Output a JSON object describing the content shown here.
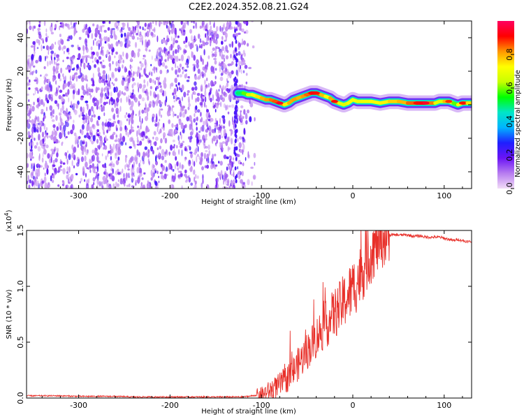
{
  "figure": {
    "title": "C2E2.2024.352.08.21.G24"
  },
  "chart_data": [
    {
      "type": "heatmap",
      "title": "C2E2.2024.352.08.21.G24",
      "xlabel": "Height of straight line (km)",
      "ylabel": "Frequency (Hz)",
      "xlim": [
        -357,
        130
      ],
      "ylim": [
        -50,
        50
      ],
      "xticks": [
        -300,
        -200,
        -100,
        0,
        100
      ],
      "xtick_labels": [
        "-300",
        "-200",
        "-100",
        "0",
        "100"
      ],
      "yticks": [
        -40,
        -20,
        0,
        20,
        40
      ],
      "ytick_labels": [
        "-40",
        "-20",
        "0",
        "20",
        "40"
      ],
      "colorbar": {
        "label": "Normalized spectral amplitude",
        "range": [
          0,
          1
        ],
        "ticks": [
          0.0,
          0.2,
          0.4,
          0.6,
          0.8
        ],
        "tick_labels": [
          "0.0",
          "0.2",
          "0.4",
          "0.6",
          "0.8"
        ],
        "colors": [
          "#f2dcf7",
          "#b77cf0",
          "#6b14f5",
          "#1f1fff",
          "#00b4ff",
          "#00e6c8",
          "#00ff00",
          "#c8ff00",
          "#ffff00",
          "#ff9600",
          "#ff0000",
          "#ff0060"
        ]
      },
      "noise_region_x": [
        -357,
        -118
      ],
      "ridge": {
        "x": [
          -126,
          -120,
          -115,
          -110,
          -105,
          -100,
          -95,
          -90,
          -85,
          -80,
          -75,
          -70,
          -65,
          -60,
          -55,
          -50,
          -45,
          -40,
          -35,
          -30,
          -25,
          -20,
          -15,
          -10,
          -5,
          0,
          5,
          10,
          20,
          30,
          40,
          50,
          60,
          70,
          80,
          90,
          95,
          100,
          105,
          110,
          115,
          120,
          125,
          130
        ],
        "y": [
          7,
          7,
          6,
          6,
          5,
          4,
          3,
          3,
          2,
          1,
          0,
          1,
          3,
          4,
          5,
          6,
          7,
          7,
          6,
          5,
          4,
          2,
          1,
          0,
          1,
          3,
          2,
          2,
          2,
          1,
          2,
          2,
          1,
          1,
          1,
          1,
          2,
          2,
          2,
          1,
          0,
          1,
          1,
          1
        ],
        "amplitude": [
          0.45,
          0.55,
          0.62,
          0.7,
          0.72,
          0.78,
          0.8,
          0.82,
          0.86,
          0.95,
          0.7,
          0.78,
          0.82,
          0.8,
          0.78,
          0.85,
          0.92,
          0.9,
          0.82,
          0.75,
          0.7,
          0.9,
          0.72,
          0.65,
          0.7,
          0.72,
          0.7,
          0.68,
          0.72,
          0.72,
          0.75,
          0.78,
          0.8,
          0.9,
          0.95,
          0.72,
          0.65,
          0.7,
          0.88,
          0.62,
          0.55,
          0.9,
          0.8,
          0.7
        ]
      }
    },
    {
      "type": "line",
      "xlabel": "Height of straight line (km)",
      "ylabel": "SNR (10 * v/v)",
      "yscale_label": "(x10",
      "yscale_exponent": "4",
      "xlim": [
        -357,
        130
      ],
      "ylim": [
        0,
        1.5
      ],
      "xticks": [
        -300,
        -200,
        -100,
        0,
        100
      ],
      "xtick_labels": [
        "-300",
        "-200",
        "-100",
        "0",
        "100"
      ],
      "yticks": [
        0.0,
        0.5,
        1.0,
        1.5
      ],
      "ytick_labels": [
        "0.0",
        "0.5",
        "1.0",
        "1.5"
      ],
      "color": "#e8302a",
      "series": [
        {
          "x": [
            -357,
            -340,
            -320,
            -300,
            -280,
            -260,
            -240,
            -220,
            -200,
            -180,
            -160,
            -140,
            -120,
            -110,
            -100,
            -95,
            -90,
            -85,
            -80,
            -75,
            -70,
            -65,
            -60,
            -55,
            -50,
            -45,
            -40,
            -35,
            -30,
            -25,
            -20,
            -15,
            -10,
            -5,
            0,
            5,
            10,
            15,
            20,
            25,
            30,
            35,
            40,
            45,
            50,
            55,
            60,
            65,
            70,
            75,
            80,
            85,
            90,
            95,
            100,
            105,
            110,
            115,
            120,
            125,
            130
          ],
          "y": [
            0.02,
            0.02,
            0.02,
            0.015,
            0.015,
            0.015,
            0.01,
            0.01,
            0.01,
            0.01,
            0.01,
            0.01,
            0.01,
            0.02,
            0.03,
            0.05,
            0.07,
            0.09,
            0.12,
            0.15,
            0.19,
            0.24,
            0.3,
            0.36,
            0.42,
            0.48,
            0.54,
            0.6,
            0.65,
            0.7,
            0.76,
            0.8,
            0.86,
            0.92,
            0.98,
            1.05,
            1.13,
            1.22,
            1.3,
            1.37,
            1.42,
            1.45,
            1.46,
            1.46,
            1.46,
            1.46,
            1.46,
            1.45,
            1.45,
            1.45,
            1.44,
            1.44,
            1.44,
            1.44,
            1.43,
            1.42,
            1.41,
            1.42,
            1.41,
            1.4,
            1.4
          ]
        }
      ]
    }
  ]
}
